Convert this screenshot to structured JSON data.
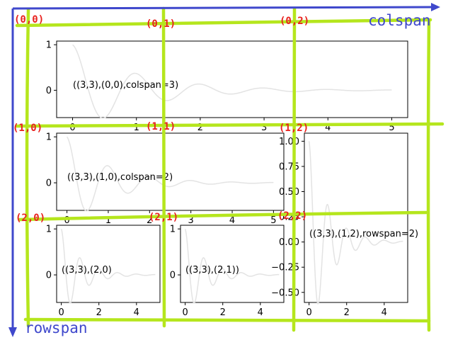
{
  "axes": [
    {
      "id": "ax1",
      "label": "((3,3),(0,0),colspan=3)",
      "xticks": [
        "0",
        "1",
        "2",
        "3",
        "4",
        "5"
      ],
      "yticks": [
        "1",
        "0"
      ],
      "xlim": [
        -0.25,
        5.25
      ],
      "ylim": [
        -0.6,
        1.08
      ]
    },
    {
      "id": "ax2",
      "label": "((3,3),(1,0),colspan=2)",
      "xticks": [
        "0",
        "1",
        "2",
        "3",
        "4",
        "5"
      ],
      "yticks": [
        "1",
        "0"
      ],
      "xlim": [
        -0.25,
        5.25
      ],
      "ylim": [
        -0.6,
        1.08
      ]
    },
    {
      "id": "ax3",
      "label": "((3,3),(1,2),rowspan=2)",
      "xticks": [
        "0",
        "2",
        "4"
      ],
      "yticks": [
        "1.00",
        "0.75",
        "0.50",
        "0.25",
        "0.00",
        "−0.25",
        "−0.50"
      ],
      "ytick_values": [
        1.0,
        0.75,
        0.5,
        0.25,
        0.0,
        -0.25,
        -0.5
      ],
      "xlim": [
        -0.25,
        5.25
      ],
      "ylim": [
        -0.6,
        1.08
      ]
    },
    {
      "id": "ax4",
      "label": "((3,3),(2,0)",
      "xticks": [
        "0",
        "2",
        "4"
      ],
      "yticks": [
        "1",
        "0"
      ],
      "xlim": [
        -0.25,
        5.25
      ],
      "ylim": [
        -0.6,
        1.08
      ]
    },
    {
      "id": "ax5",
      "label": "((3,3),(2,1))",
      "xticks": [
        "0",
        "2",
        "4"
      ],
      "yticks": [
        "1",
        "0"
      ],
      "xlim": [
        -0.25,
        5.25
      ],
      "ylim": [
        -0.6,
        1.08
      ]
    }
  ],
  "cells": [
    {
      "text": "(0,0)"
    },
    {
      "text": "(0,1)"
    },
    {
      "text": "(0,2)"
    },
    {
      "text": "(1,0)"
    },
    {
      "text": "(1,1)"
    },
    {
      "text": "(1,2)"
    },
    {
      "text": "(2,0)"
    },
    {
      "text": "(2,1)"
    },
    {
      "text": "(2,2)"
    }
  ],
  "colspan_label": "colspan",
  "rowspan_label": "rowspan",
  "colors": {
    "grid": "#b5e61d",
    "cell_label": "#e8221e",
    "arrow": "#3f48cc",
    "curve": "#e3e3e3"
  },
  "curve": "damped cosine  exp(-x)·cos(2πx)"
}
